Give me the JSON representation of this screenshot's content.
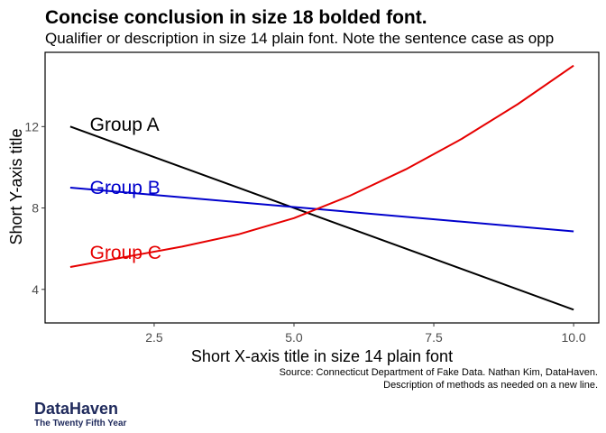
{
  "chart_data": {
    "type": "line",
    "title": "Concise conclusion in size 18 bolded font.",
    "subtitle": "Qualifier or description in size 14 plain font. Note the sentence case as opp",
    "xlabel": "Short X-axis title in size 14 plain font",
    "ylabel": "Short Y-axis title",
    "xlim": [
      0.55,
      10.45
    ],
    "ylim": [
      2.35,
      15.65
    ],
    "xticks": [
      2.5,
      5.0,
      7.5,
      10.0
    ],
    "xtick_labels": [
      "2.5",
      "5.0",
      "7.5",
      "10.0"
    ],
    "yticks": [
      4,
      8,
      12
    ],
    "ytick_labels": [
      "4",
      "8",
      "12"
    ],
    "grid": false,
    "legend": "none",
    "series": [
      {
        "name": "Group A",
        "color": "#000000",
        "x": [
          1,
          10
        ],
        "y": [
          12,
          3
        ],
        "label_pos": [
          1.35,
          12.1
        ]
      },
      {
        "name": "Group B",
        "color": "#0000cc",
        "x": [
          1,
          10
        ],
        "y": [
          9,
          6.85
        ],
        "label_pos": [
          1.35,
          9.0
        ]
      },
      {
        "name": "Group C",
        "color": "#e60000",
        "x": [
          1,
          2,
          3,
          4,
          5,
          6,
          7,
          8,
          9,
          10
        ],
        "y": [
          5.1,
          5.6,
          6.1,
          6.7,
          7.5,
          8.6,
          9.9,
          11.4,
          13.1,
          15.0
        ],
        "label_pos": [
          1.35,
          5.8
        ]
      }
    ]
  },
  "caption": {
    "line1": "Source: Connecticut Department of Fake Data. Nathan Kim, DataHaven.",
    "line2": "Description of methods as needed on a new line."
  },
  "logo": {
    "name": "DataHaven",
    "tagline": "The Twenty Fifth Year"
  }
}
